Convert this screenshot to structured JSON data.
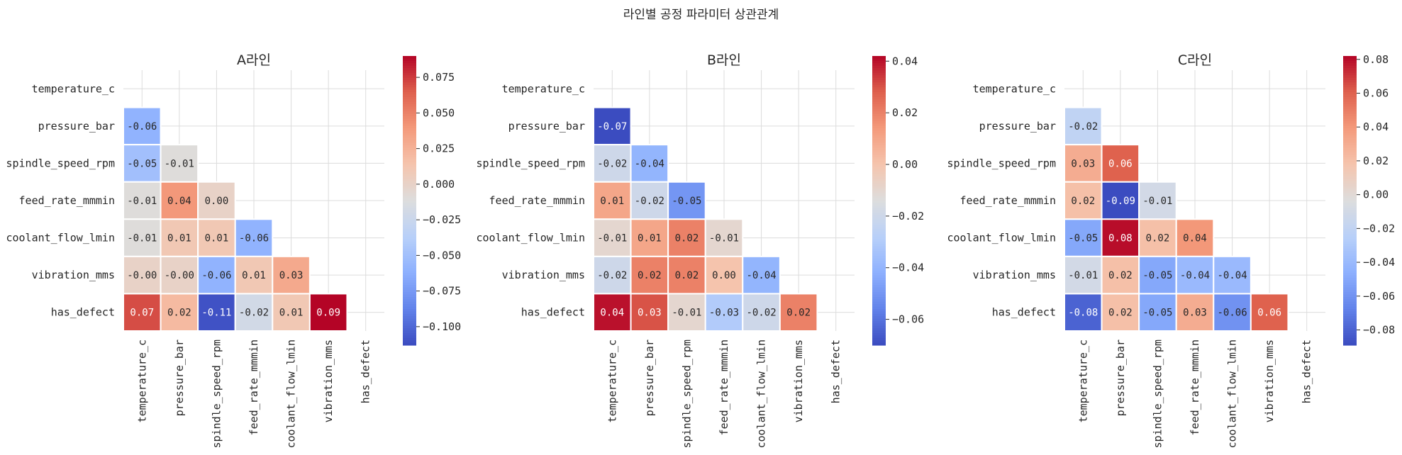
{
  "figure": {
    "title": "라인별 공정 파라미터 상관관계"
  },
  "chart_data": [
    {
      "type": "heatmap",
      "title": "A라인",
      "labels": [
        "temperature_c",
        "pressure_bar",
        "spindle_speed_rpm",
        "feed_rate_mmmin",
        "coolant_flow_lmin",
        "vibration_mms",
        "has_defect"
      ],
      "matrix": [
        [
          null,
          null,
          null,
          null,
          null,
          null,
          null
        ],
        [
          -0.06,
          null,
          null,
          null,
          null,
          null,
          null
        ],
        [
          -0.05,
          -0.01,
          null,
          null,
          null,
          null,
          null
        ],
        [
          -0.01,
          0.04,
          0.0,
          null,
          null,
          null,
          null
        ],
        [
          -0.01,
          0.01,
          0.01,
          -0.06,
          null,
          null,
          null
        ],
        [
          -0.0,
          -0.0,
          -0.06,
          0.01,
          0.03,
          null,
          null
        ],
        [
          0.07,
          0.02,
          -0.11,
          -0.02,
          0.01,
          0.09,
          null
        ]
      ],
      "colorbar": {
        "vmin": -0.113,
        "vmax": 0.09,
        "cmap": "coolwarm",
        "ticks": [
          0.075,
          0.05,
          0.025,
          0.0,
          -0.025,
          -0.05,
          -0.075,
          -0.1
        ],
        "tick_labels": [
          "0.075",
          "0.050",
          "0.025",
          "0.000",
          "−0.025",
          "−0.050",
          "−0.075",
          "−0.100"
        ]
      },
      "masked": "upper-triangle-including-diagonal"
    },
    {
      "type": "heatmap",
      "title": "B라인",
      "labels": [
        "temperature_c",
        "pressure_bar",
        "spindle_speed_rpm",
        "feed_rate_mmmin",
        "coolant_flow_lmin",
        "vibration_mms",
        "has_defect"
      ],
      "matrix": [
        [
          null,
          null,
          null,
          null,
          null,
          null,
          null
        ],
        [
          -0.07,
          null,
          null,
          null,
          null,
          null,
          null
        ],
        [
          -0.02,
          -0.04,
          null,
          null,
          null,
          null,
          null
        ],
        [
          0.01,
          -0.02,
          -0.05,
          null,
          null,
          null,
          null
        ],
        [
          -0.01,
          0.01,
          0.02,
          -0.01,
          null,
          null,
          null
        ],
        [
          -0.02,
          0.02,
          0.02,
          0.0,
          -0.04,
          null,
          null
        ],
        [
          0.04,
          0.03,
          -0.01,
          -0.03,
          -0.02,
          0.02,
          null
        ]
      ],
      "colorbar": {
        "vmin": -0.07,
        "vmax": 0.042,
        "cmap": "coolwarm",
        "ticks": [
          0.04,
          0.02,
          0.0,
          -0.02,
          -0.04,
          -0.06
        ],
        "tick_labels": [
          "0.04",
          "0.02",
          "0.00",
          "−0.02",
          "−0.04",
          "−0.06"
        ]
      },
      "masked": "upper-triangle-including-diagonal"
    },
    {
      "type": "heatmap",
      "title": "C라인",
      "labels": [
        "temperature_c",
        "pressure_bar",
        "spindle_speed_rpm",
        "feed_rate_mmmin",
        "coolant_flow_lmin",
        "vibration_mms",
        "has_defect"
      ],
      "matrix": [
        [
          null,
          null,
          null,
          null,
          null,
          null,
          null
        ],
        [
          -0.02,
          null,
          null,
          null,
          null,
          null,
          null
        ],
        [
          0.03,
          0.06,
          null,
          null,
          null,
          null,
          null
        ],
        [
          0.02,
          -0.09,
          -0.01,
          null,
          null,
          null,
          null
        ],
        [
          -0.05,
          0.08,
          0.02,
          0.04,
          null,
          null,
          null
        ],
        [
          -0.01,
          0.02,
          -0.05,
          -0.04,
          -0.04,
          null,
          null
        ],
        [
          -0.08,
          0.02,
          -0.05,
          0.03,
          -0.06,
          0.06,
          null
        ]
      ],
      "colorbar": {
        "vmin": -0.089,
        "vmax": 0.082,
        "cmap": "coolwarm",
        "ticks": [
          0.08,
          0.06,
          0.04,
          0.02,
          0.0,
          -0.02,
          -0.04,
          -0.06,
          -0.08
        ],
        "tick_labels": [
          "0.08",
          "0.06",
          "0.04",
          "0.02",
          "0.00",
          "−0.02",
          "−0.04",
          "−0.06",
          "−0.08"
        ]
      },
      "masked": "upper-triangle-including-diagonal"
    }
  ]
}
